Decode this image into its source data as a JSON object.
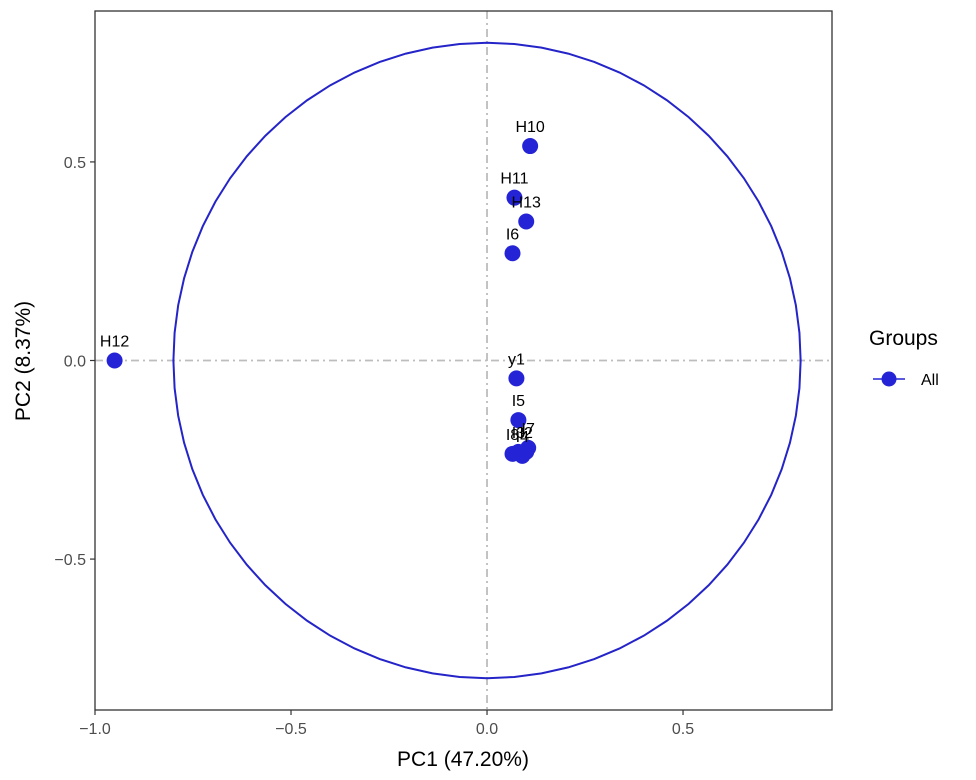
{
  "chart_data": {
    "type": "scatter",
    "xlabel": "PC1 (47.20%)",
    "ylabel": "PC2 (8.37%)",
    "xlim": [
      -1.0,
      0.88
    ],
    "ylim": [
      -0.88,
      0.88
    ],
    "xticks": [
      -1.0,
      -0.5,
      0.0,
      0.5
    ],
    "xtick_labels": [
      "−1.0",
      "−0.5",
      "0.0",
      "0.5"
    ],
    "yticks": [
      -0.5,
      0.0,
      0.5
    ],
    "ytick_labels": [
      "−0.5",
      "0.0",
      "0.5"
    ],
    "circle_radius": 0.8,
    "grid": false,
    "reference_lines": [
      "x=0",
      "y=0"
    ],
    "legend": {
      "title": "Groups",
      "entries": [
        "All"
      ],
      "position": "right"
    },
    "series": [
      {
        "name": "All",
        "color": "#2424d6",
        "points": [
          {
            "label": "H10",
            "x": 0.11,
            "y": 0.54
          },
          {
            "label": "H11",
            "x": 0.07,
            "y": 0.41
          },
          {
            "label": "H13",
            "x": 0.1,
            "y": 0.35
          },
          {
            "label": "I6",
            "x": 0.065,
            "y": 0.27
          },
          {
            "label": "H12",
            "x": -0.95,
            "y": 0.0
          },
          {
            "label": "y1",
            "x": 0.075,
            "y": -0.045
          },
          {
            "label": "I5",
            "x": 0.08,
            "y": -0.15
          },
          {
            "label": "I7",
            "x": 0.105,
            "y": -0.22
          },
          {
            "label": "I2",
            "x": 0.1,
            "y": -0.23
          },
          {
            "label": "I3",
            "x": 0.08,
            "y": -0.23
          },
          {
            "label": "I8",
            "x": 0.065,
            "y": -0.235
          },
          {
            "label": "I4",
            "x": 0.09,
            "y": -0.24
          }
        ]
      }
    ]
  }
}
